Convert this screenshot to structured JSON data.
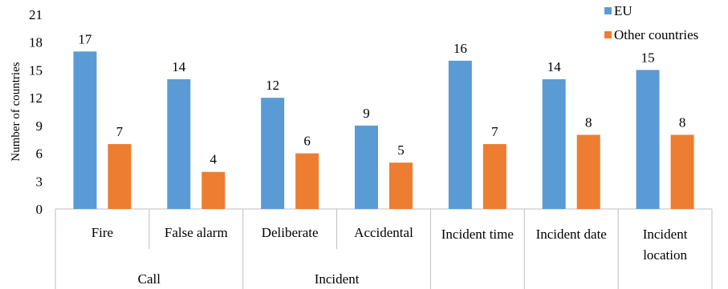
{
  "chart_data": {
    "type": "bar",
    "title": "",
    "ylabel": "Number of countries",
    "ylim": [
      0,
      21
    ],
    "yticks": [
      0,
      3,
      6,
      9,
      12,
      15,
      18,
      21
    ],
    "grid": false,
    "legend_position": "top-right",
    "categories": [
      "Fire",
      "False alarm",
      "Deliberate",
      "Accidental",
      "Incident time",
      "Incident date",
      "Incident location"
    ],
    "category_lines": [
      [
        "Fire"
      ],
      [
        "False alarm"
      ],
      [
        "Deliberate"
      ],
      [
        "Accidental"
      ],
      [
        "Incident time"
      ],
      [
        "Incident date"
      ],
      [
        "Incident",
        "location"
      ]
    ],
    "groups": [
      {
        "label": "Call",
        "categories": [
          "Fire",
          "False alarm"
        ]
      },
      {
        "label": "Incident",
        "categories": [
          "Deliberate",
          "Accidental"
        ]
      },
      {
        "label": "",
        "categories": [
          "Incident time"
        ]
      },
      {
        "label": "",
        "categories": [
          "Incident date"
        ]
      },
      {
        "label": "",
        "categories": [
          "Incident location"
        ]
      }
    ],
    "series": [
      {
        "name": "EU",
        "color": "#5B9BD5",
        "values": [
          17,
          14,
          12,
          9,
          16,
          14,
          15
        ]
      },
      {
        "name": "Other countries",
        "color": "#ED7D31",
        "values": [
          7,
          4,
          6,
          5,
          7,
          8,
          8
        ]
      }
    ]
  }
}
